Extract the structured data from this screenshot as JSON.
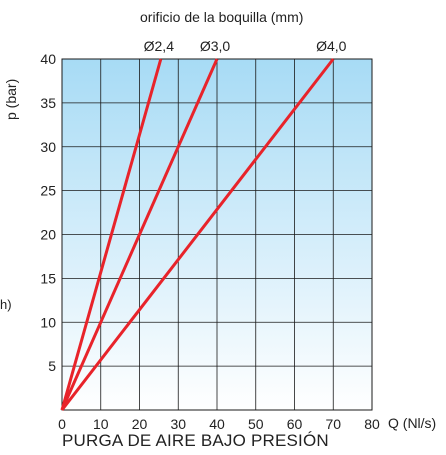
{
  "chart_data": {
    "type": "line",
    "title": "orificio de la boquilla (mm)",
    "ylabel": "p (bar)",
    "xlabel": "Q (Nl/s)",
    "footer": "PURGA DE AIRE BAJO PRESIÓN",
    "stray_label": "h)",
    "xlim": [
      0,
      80
    ],
    "ylim": [
      0,
      40
    ],
    "x_ticks": [
      "0",
      "10",
      "20",
      "30",
      "40",
      "50",
      "60",
      "70",
      "80"
    ],
    "y_ticks": [
      "5",
      "10",
      "15",
      "20",
      "25",
      "30",
      "35",
      "40"
    ],
    "x_tick_values": [
      0,
      10,
      20,
      30,
      40,
      50,
      60,
      70,
      80
    ],
    "y_tick_values": [
      5,
      10,
      15,
      20,
      25,
      30,
      35,
      40
    ],
    "grid": true,
    "background_gradient": [
      "#a7dbf5",
      "#ffffff"
    ],
    "line_color": "#e8232a",
    "series": [
      {
        "name": "Ø2,4",
        "x": [
          0,
          25.5
        ],
        "y": [
          0,
          40
        ]
      },
      {
        "name": "Ø3,0",
        "x": [
          0,
          40.0
        ],
        "y": [
          0,
          40
        ]
      },
      {
        "name": "Ø4,0",
        "x": [
          0,
          70.0
        ],
        "y": [
          0,
          40
        ]
      }
    ]
  }
}
